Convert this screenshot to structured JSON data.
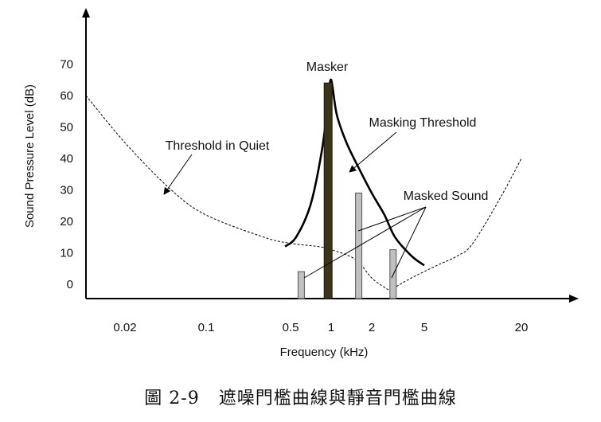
{
  "caption": "圖 2-9   遮噪門檻曲線與靜音門檻曲線",
  "chart_data": {
    "type": "line",
    "xlabel": "Frequency (kHz)",
    "ylabel": "Sound Pressure Level (dB)",
    "x_scale": "log",
    "x_ticks": [
      "0.02",
      "0.1",
      "0.5",
      "1",
      "2",
      "5",
      "20"
    ],
    "y_ticks": [
      "0",
      "10",
      "20",
      "30",
      "40",
      "50",
      "60",
      "70"
    ],
    "ylim": [
      -5,
      75
    ],
    "series": [
      {
        "name": "Threshold in Quiet",
        "style": "dashed",
        "x": [
          0.01,
          0.02,
          0.05,
          0.1,
          0.3,
          0.5,
          0.8,
          1,
          1.5,
          2,
          2.5,
          2.8,
          3,
          4,
          6,
          8,
          10,
          15,
          20
        ],
        "y": [
          60,
          45,
          30,
          22,
          15,
          13,
          12,
          11,
          8,
          2,
          -1,
          -2,
          -1,
          2,
          6,
          9,
          13,
          28,
          40
        ]
      },
      {
        "name": "Masking Threshold",
        "style": "solid",
        "x": [
          0.45,
          0.55,
          0.7,
          0.85,
          0.95,
          1,
          1.1,
          1.3,
          1.6,
          2,
          2.5,
          3,
          4,
          5
        ],
        "y": [
          12,
          15,
          25,
          42,
          58,
          65,
          54,
          45,
          37,
          29,
          22,
          15,
          9,
          6
        ]
      }
    ],
    "bars": [
      {
        "name": "Masker",
        "x": 0.95,
        "value": 64
      },
      {
        "name": "Masked Sound",
        "x": 0.6,
        "value": 4
      },
      {
        "name": "Masked Sound",
        "x": 1.6,
        "value": 29
      },
      {
        "name": "Masked Sound",
        "x": 2.9,
        "value": 11
      }
    ],
    "annotations": [
      "Masker",
      "Masking Threshold",
      "Threshold in Quiet",
      "Masked Sound"
    ],
    "colors": {
      "masker": "#3a3418",
      "masked": "#c0c0c0",
      "curve": "#000000"
    }
  }
}
